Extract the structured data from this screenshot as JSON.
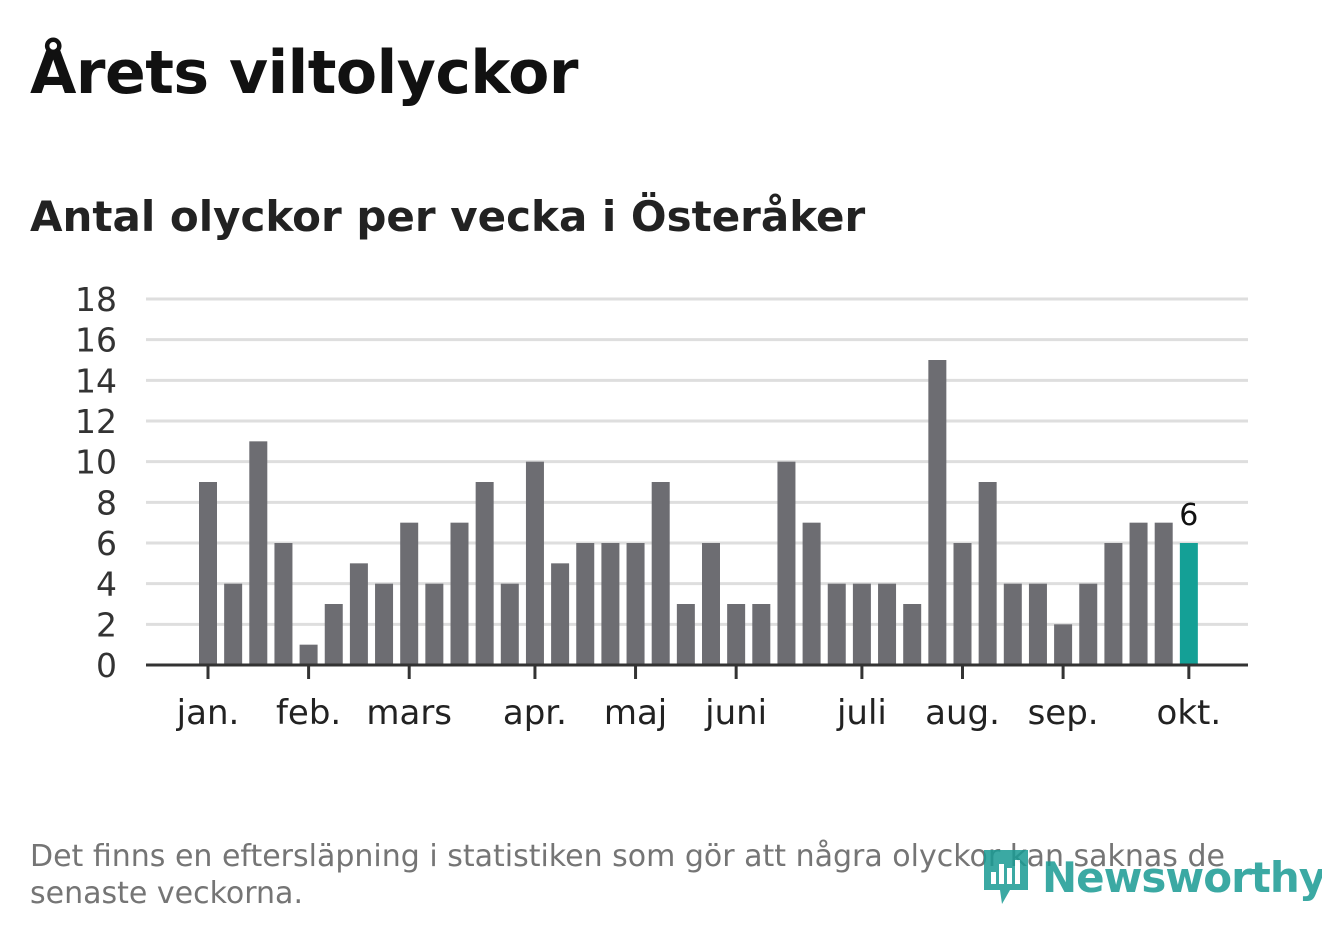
{
  "header": {
    "title": "Årets viltolyckor",
    "subtitle": "Antal olyckor per vecka i Österåker"
  },
  "footer": {
    "note": "Det finns en eftersläpning i statistiken som gör att några olyckor kan saknas de senaste veckorna.",
    "brand": "Newsworthy"
  },
  "colors": {
    "bar": "#6d6d72",
    "highlight": "#14a096",
    "grid": "#dedede",
    "axis": "#333333",
    "brand": "#1a9b94"
  },
  "chart_data": {
    "type": "bar",
    "title": "Antal olyckor per vecka i Österåker",
    "xlabel": "",
    "ylabel": "",
    "ylim": [
      0,
      18
    ],
    "yticks": [
      "0",
      "2",
      "4",
      "6",
      "8",
      "10",
      "12",
      "14",
      "16",
      "18"
    ],
    "grid": true,
    "values": [
      9,
      4,
      11,
      6,
      1,
      3,
      5,
      4,
      7,
      4,
      7,
      9,
      4,
      10,
      5,
      6,
      6,
      6,
      9,
      3,
      6,
      3,
      3,
      10,
      7,
      4,
      4,
      4,
      3,
      15,
      6,
      9,
      4,
      4,
      2,
      4,
      6,
      7,
      7,
      6
    ],
    "highlight_index": 39,
    "highlight_label": "6",
    "month_labels": [
      {
        "label": "jan.",
        "bar_index": 0
      },
      {
        "label": "feb.",
        "bar_index": 4
      },
      {
        "label": "mars",
        "bar_index": 8
      },
      {
        "label": "apr.",
        "bar_index": 13
      },
      {
        "label": "maj",
        "bar_index": 17
      },
      {
        "label": "juni",
        "bar_index": 21
      },
      {
        "label": "juli",
        "bar_index": 26
      },
      {
        "label": "aug.",
        "bar_index": 30
      },
      {
        "label": "sep.",
        "bar_index": 34
      },
      {
        "label": "okt.",
        "bar_index": 39
      }
    ]
  }
}
